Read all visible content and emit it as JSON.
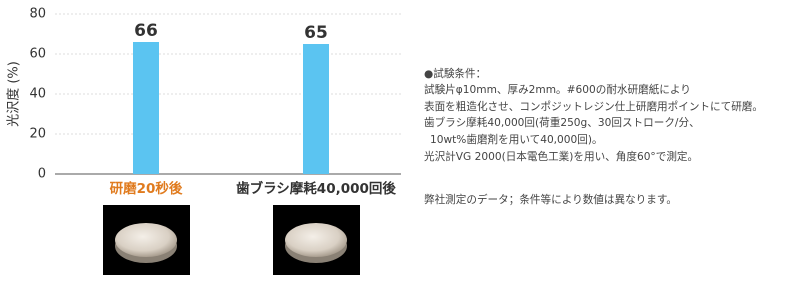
{
  "chart_data": {
    "type": "bar",
    "y_label": "光沢度 (%)",
    "categories": [
      "研磨20秒後",
      "歯ブラシ摩耗40,000回後"
    ],
    "category_colors": [
      "#e07b1e",
      "#333333"
    ],
    "values": [
      66,
      65
    ],
    "color": "#5bc4f1",
    "ylim": [
      0,
      80
    ],
    "yticks": [
      0,
      20,
      40,
      60,
      80
    ],
    "grid": true
  },
  "notes": [
    "●試験条件：",
    "試験片φ10mm、厚み2mm。#600の耐水研磨紙により",
    "表面を粗造化させ、コンポジットレジン仕上研磨用ポイントにて研磨。",
    "歯ブラシ摩耗40,000回(荷重250g、30回ストローク/分、",
    "10wt%歯磨剤を用いて40,000回)。",
    "光沢計VG 2000(日本電色工業)を用い、角度60°で測定。",
    "弊社測定のデータ；条件等により数値は異なります。"
  ]
}
